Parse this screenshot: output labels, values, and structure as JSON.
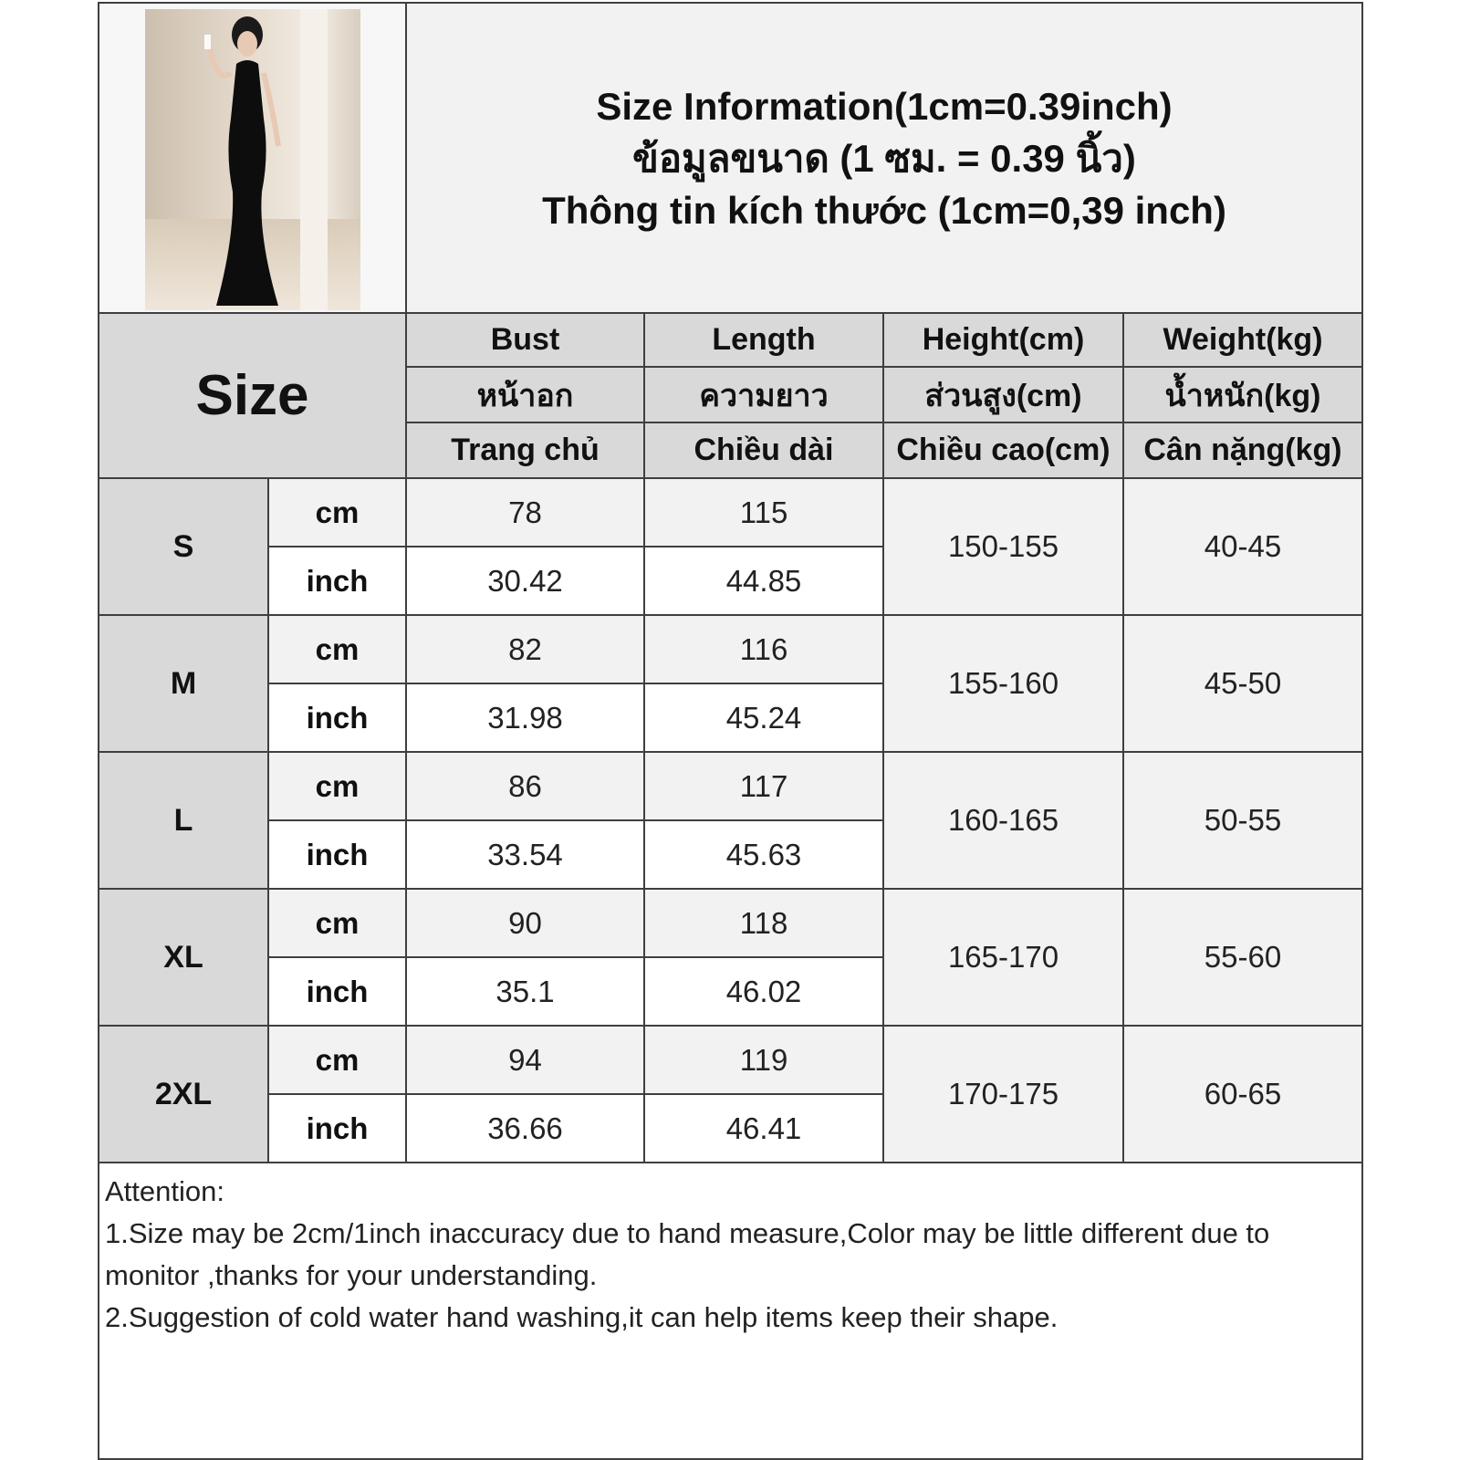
{
  "title": {
    "line1": "Size Information(1cm=0.39inch)",
    "line2": "ข้อมูลขนาด (1 ซม. = 0.39 นิ้ว)",
    "line3": "Thông tin kích thước (1cm=0,39 inch)"
  },
  "product_image": "woman in black sleeveless mermaid maxi dress",
  "header": {
    "size_label": "Size",
    "columns": [
      {
        "en": "Bust",
        "th": "หน้าอก",
        "vi": "Trang chủ"
      },
      {
        "en": "Length",
        "th": "ความยาว",
        "vi": "Chiều dài"
      },
      {
        "en": "Height(cm)",
        "th": "ส่วนสูง(cm)",
        "vi": "Chiều cao(cm)"
      },
      {
        "en": "Weight(kg)",
        "th": "น้ำหนัก(kg)",
        "vi": "Cân nặng(kg)"
      }
    ]
  },
  "units": {
    "cm": "cm",
    "inch": "inch"
  },
  "rows": [
    {
      "size": "S",
      "bust_cm": "78",
      "length_cm": "115",
      "bust_in": "30.42",
      "length_in": "44.85",
      "height": "150-155",
      "weight": "40-45"
    },
    {
      "size": "M",
      "bust_cm": "82",
      "length_cm": "116",
      "bust_in": "31.98",
      "length_in": "45.24",
      "height": "155-160",
      "weight": "45-50"
    },
    {
      "size": "L",
      "bust_cm": "86",
      "length_cm": "117",
      "bust_in": "33.54",
      "length_in": "45.63",
      "height": "160-165",
      "weight": "50-55"
    },
    {
      "size": "XL",
      "bust_cm": "90",
      "length_cm": "118",
      "bust_in": "35.1",
      "length_in": "46.02",
      "height": "165-170",
      "weight": "55-60"
    },
    {
      "size": "2XL",
      "bust_cm": "94",
      "length_cm": "119",
      "bust_in": "36.66",
      "length_in": "46.41",
      "height": "170-175",
      "weight": "60-65"
    }
  ],
  "notes": {
    "heading": "Attention:",
    "item1": "1.Size may be 2cm/1inch inaccuracy due to hand measure,Color may be little different due to monitor ,thanks for your understanding.",
    "item2": "2.Suggestion of cold water hand washing,it can help items keep their shape."
  },
  "colors": {
    "header_gray": "#d9d9d9",
    "light_gray": "#f2f2f2",
    "border": "#3f3f3f"
  }
}
